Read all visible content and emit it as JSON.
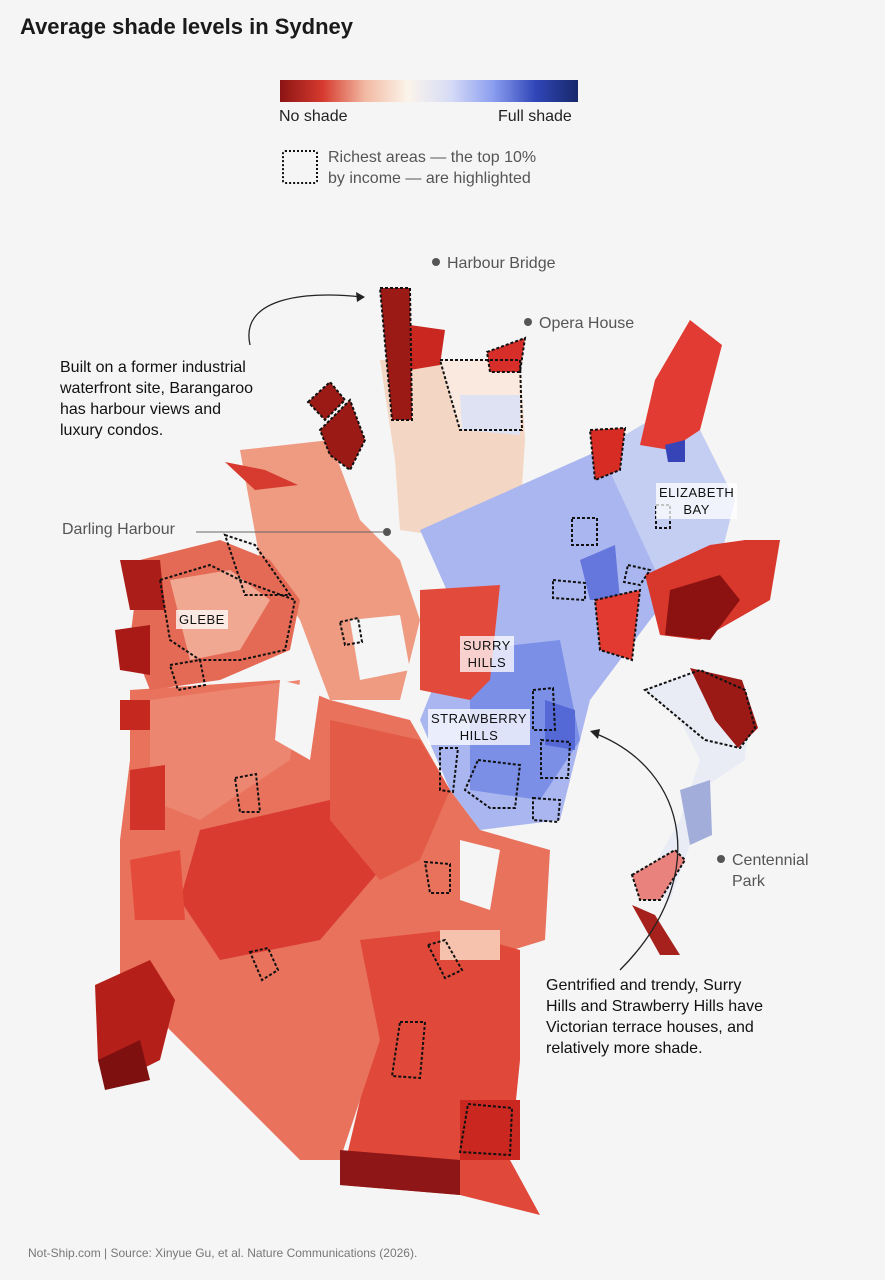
{
  "title": "Average shade levels in Sydney",
  "legend": {
    "low_label": "No shade",
    "high_label": "Full shade",
    "gradient_colors": [
      "#8b1414",
      "#d63a2e",
      "#f2b9a2",
      "#fbf4ea",
      "#d7dcf6",
      "#8c9ef0",
      "#3046b8",
      "#18286a"
    ],
    "highlight_text_line1": "Richest areas — the top 10%",
    "highlight_text_line2": "by income — are highlighted"
  },
  "landmarks": {
    "harbour_bridge": "Harbour Bridge",
    "opera_house": "Opera House",
    "darling_harbour": "Darling Harbour",
    "centennial_line1": "Centennial",
    "centennial_line2": "Park"
  },
  "areas": {
    "glebe": "GLEBE",
    "elizabeth_bay_line1": "ELIZABETH",
    "elizabeth_bay_line2": "BAY",
    "surry_hills_line1": "SURRY",
    "surry_hills_line2": "HILLS",
    "strawberry_hills_line1": "STRAWBERRY",
    "strawberry_hills_line2": "HILLS"
  },
  "annotations": {
    "barangaroo": [
      "Built on a former industrial",
      "waterfront site, Barangaroo",
      "has harbour views and",
      "luxury condos."
    ],
    "surry_hills": [
      "Gentrified and trendy, Surry",
      "Hills and Strawberry Hills have",
      "Victorian terrace houses, and",
      "relatively more shade."
    ]
  },
  "footer": "Not-Ship.com | Source: Xinyue Gu, et al. Nature Communications (2026)."
}
